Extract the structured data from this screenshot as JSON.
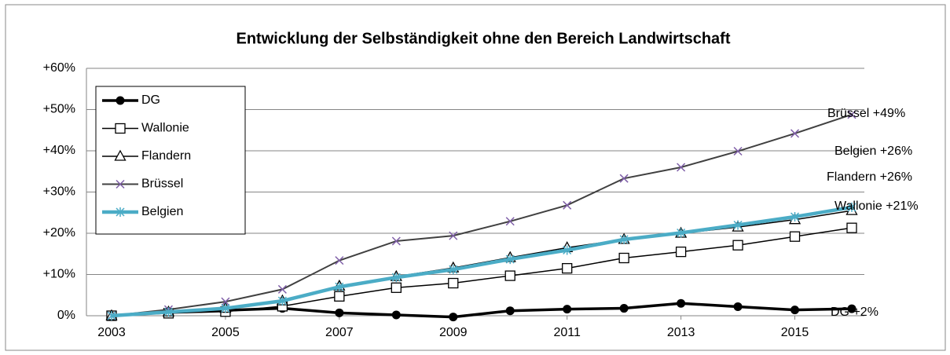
{
  "chart_data": {
    "type": "line",
    "title": "Entwicklung der Selbständigkeit ohne den Bereich Landwirtschaft",
    "x": [
      2003,
      2004,
      2005,
      2006,
      2007,
      2008,
      2009,
      2010,
      2011,
      2012,
      2013,
      2014,
      2015,
      2016
    ],
    "xlim": [
      2003,
      2016
    ],
    "xticks": [
      2003,
      2005,
      2007,
      2009,
      2011,
      2013,
      2015
    ],
    "ylim": [
      0,
      60
    ],
    "yticks": [
      {
        "value": 0,
        "label": "0%"
      },
      {
        "value": 10,
        "label": "+10%"
      },
      {
        "value": 20,
        "label": "+20%"
      },
      {
        "value": 30,
        "label": "+30%"
      },
      {
        "value": 40,
        "label": "+40%"
      },
      {
        "value": 50,
        "label": "+50%"
      },
      {
        "value": 60,
        "label": "+60%"
      }
    ],
    "grid": true,
    "legend": "upper left",
    "series": [
      {
        "name": "DG",
        "color": "#000000",
        "marker": "circle",
        "values": [
          0,
          1,
          1.3,
          1.8,
          0.7,
          0.2,
          -0.3,
          1.2,
          1.6,
          1.8,
          3,
          2.2,
          1.4,
          1.7
        ]
      },
      {
        "name": "Wallonie",
        "color": "#000000",
        "marker": "square",
        "values": [
          0,
          0.6,
          1,
          2.3,
          4.7,
          6.8,
          7.9,
          9.7,
          11.5,
          14,
          15.5,
          17.1,
          19.2,
          21.3
        ]
      },
      {
        "name": "Flandern",
        "color": "#000000",
        "marker": "triangle",
        "values": [
          0,
          0.9,
          1.8,
          3.6,
          7.2,
          9.5,
          11.6,
          14.1,
          16.5,
          18.5,
          20,
          21.5,
          23.3,
          25.5
        ]
      },
      {
        "name": "Brüssel",
        "color": "#404040",
        "marker": "x",
        "values": [
          0,
          1.5,
          3.4,
          6.4,
          13.4,
          18.1,
          19.4,
          22.9,
          26.8,
          33.3,
          36,
          39.9,
          44.2,
          48.8
        ]
      },
      {
        "name": "Belgien",
        "color": "#4bacc6",
        "marker": "star",
        "values": [
          0,
          0.9,
          1.8,
          3.6,
          7,
          9.3,
          11.2,
          13.7,
          15.9,
          18.5,
          20.1,
          22,
          24,
          26.3
        ]
      }
    ],
    "annotations": [
      "Brüssel +49%",
      "Belgien +26%",
      "Flandern +26%",
      "Wallonie +21%",
      "DG +2%"
    ]
  }
}
